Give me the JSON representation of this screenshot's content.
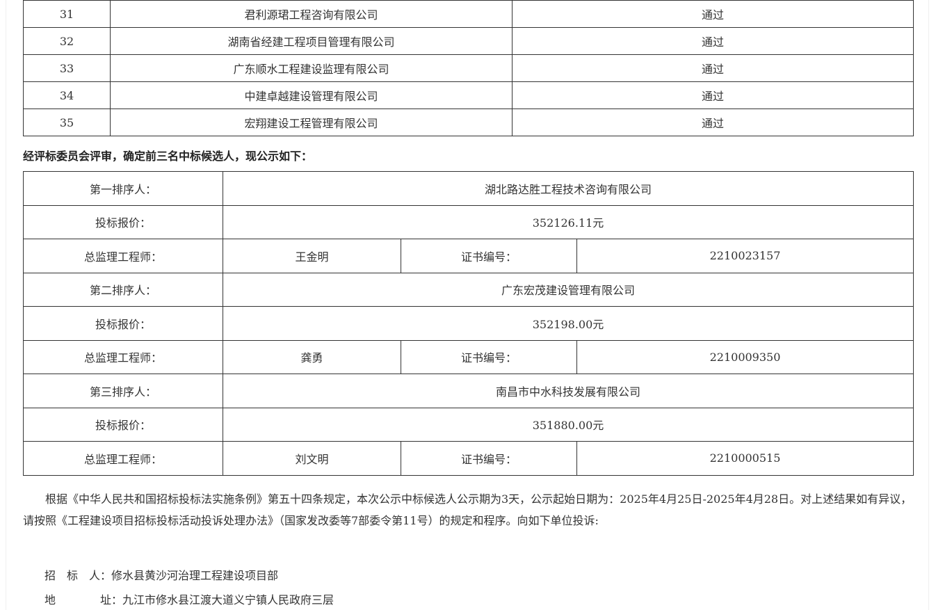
{
  "review_table": {
    "rows": [
      {
        "no": "31",
        "company": "君利源珺工程咨询有限公司",
        "result": "通过"
      },
      {
        "no": "32",
        "company": "湖南省经建工程项目管理有限公司",
        "result": "通过"
      },
      {
        "no": "33",
        "company": "广东顺水工程建设监理有限公司",
        "result": "通过"
      },
      {
        "no": "34",
        "company": "中建卓越建设管理有限公司",
        "result": "通过"
      },
      {
        "no": "35",
        "company": "宏翔建设工程管理有限公司",
        "result": "通过"
      }
    ]
  },
  "heading": "经评标委员会评审，确定前三名中标候选人，现公示如下：",
  "candidates": [
    {
      "rank_label": "第一排序人：",
      "company": "湖北路达胜工程技术咨询有限公司",
      "bid_label": "投标报价：",
      "bid": "352126.11元",
      "engineer_label": "总监理工程师：",
      "engineer": "王金明",
      "cert_label": "证书编号：",
      "cert": "2210023157"
    },
    {
      "rank_label": "第二排序人：",
      "company": "广东宏茂建设管理有限公司",
      "bid_label": "投标报价：",
      "bid": "352198.00元",
      "engineer_label": "总监理工程师：",
      "engineer": "龚勇",
      "cert_label": "证书编号：",
      "cert": "2210009350"
    },
    {
      "rank_label": "第三排序人：",
      "company": "南昌市中水科技发展有限公司",
      "bid_label": "投标报价：",
      "bid": "351880.00元",
      "engineer_label": "总监理工程师：",
      "engineer": "刘文明",
      "cert_label": "证书编号：",
      "cert": "2210000515"
    }
  ],
  "notice": "根据《中华人民共和国招标投标法实施条例》第五十四条规定，本次公示中标候选人公示期为3天，公示起始日期为：2025年4月25日-2025年4月28日。对上述结果如有异议，请按照《工程建设项目招标投标活动投诉处理办法》（国家发改委等7部委令第11号）的规定和程序。向如下单位投诉:",
  "contact": {
    "tenderer_label": "招　标　人：",
    "tenderer": "修水县黄沙河治理工程建设项目部",
    "address_label": "地　　　　址：",
    "address": "九江市修水县江渡大道义宁镇人民政府三层"
  }
}
